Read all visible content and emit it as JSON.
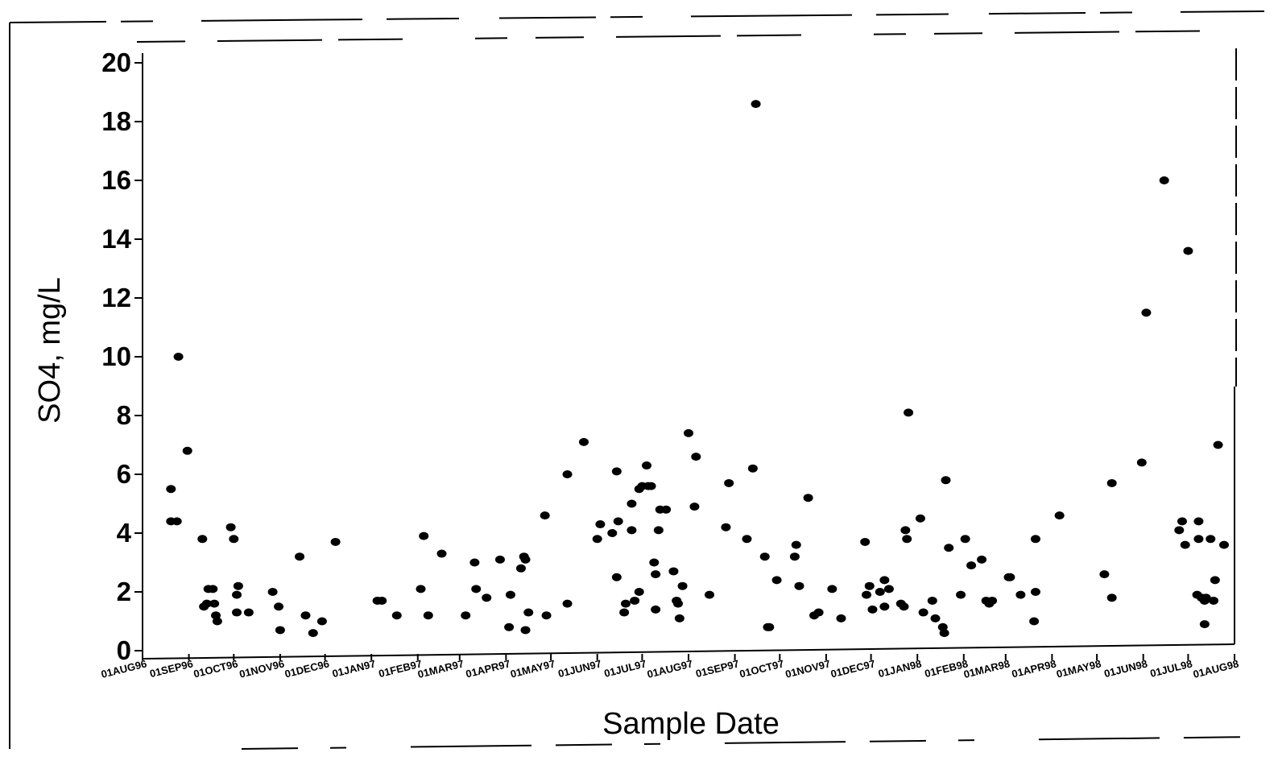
{
  "chart_data": {
    "type": "scatter",
    "title": "",
    "xlabel": "Sample Date",
    "ylabel": "SO4, mg/L",
    "ylim": [
      0,
      20
    ],
    "yticks": [
      "0",
      "2",
      "4",
      "6",
      "8",
      "10",
      "12",
      "14",
      "16",
      "18",
      "20"
    ],
    "xlim": [
      "1996-08-01",
      "1998-08-01"
    ],
    "xticks": [
      {
        "date": "1996-08-01",
        "label": "01AUG96"
      },
      {
        "date": "1996-09-01",
        "label": "01SEP96"
      },
      {
        "date": "1996-10-01",
        "label": "01OCT96"
      },
      {
        "date": "1996-11-01",
        "label": "01NOV96"
      },
      {
        "date": "1996-12-01",
        "label": "01DEC96"
      },
      {
        "date": "1997-01-01",
        "label": "01JAN97"
      },
      {
        "date": "1997-02-01",
        "label": "01FEB97"
      },
      {
        "date": "1997-03-01",
        "label": "01MAR97"
      },
      {
        "date": "1997-04-01",
        "label": "01APR97"
      },
      {
        "date": "1997-05-01",
        "label": "01MAY97"
      },
      {
        "date": "1997-06-01",
        "label": "01JUN97"
      },
      {
        "date": "1997-07-01",
        "label": "01JUL97"
      },
      {
        "date": "1997-08-01",
        "label": "01AUG97"
      },
      {
        "date": "1997-09-01",
        "label": "01SEP97"
      },
      {
        "date": "1997-10-01",
        "label": "01OCT97"
      },
      {
        "date": "1997-11-01",
        "label": "01NOV97"
      },
      {
        "date": "1997-12-01",
        "label": "01DEC97"
      },
      {
        "date": "1998-01-01",
        "label": "01JAN98"
      },
      {
        "date": "1998-02-01",
        "label": "01FEB98"
      },
      {
        "date": "1998-03-01",
        "label": "01MAR98"
      },
      {
        "date": "1998-04-01",
        "label": "01APR98"
      },
      {
        "date": "1998-05-01",
        "label": "01MAY98"
      },
      {
        "date": "1998-06-01",
        "label": "01JUN98"
      },
      {
        "date": "1998-07-01",
        "label": "01JUL98"
      },
      {
        "date": "1998-08-01",
        "label": "01AUG98"
      }
    ],
    "grid": false,
    "marker_color": "#000000",
    "series": [
      {
        "points": [
          [
            "1996-08-20",
            5.5
          ],
          [
            "1996-08-20",
            4.4
          ],
          [
            "1996-08-24",
            4.4
          ],
          [
            "1996-08-25",
            10.0
          ],
          [
            "1996-08-31",
            6.8
          ],
          [
            "1996-09-10",
            3.8
          ],
          [
            "1996-09-11",
            1.5
          ],
          [
            "1996-09-13",
            1.6
          ],
          [
            "1996-09-14",
            2.1
          ],
          [
            "1996-09-17",
            2.1
          ],
          [
            "1996-09-18",
            1.6
          ],
          [
            "1996-09-19",
            1.2
          ],
          [
            "1996-09-20",
            1.0
          ],
          [
            "1996-09-29",
            4.2
          ],
          [
            "1996-10-01",
            3.8
          ],
          [
            "1996-10-03",
            1.3
          ],
          [
            "1996-10-04",
            2.2
          ],
          [
            "1996-10-03",
            1.9
          ],
          [
            "1996-10-11",
            1.3
          ],
          [
            "1996-10-27",
            2.0
          ],
          [
            "1996-10-31",
            1.5
          ],
          [
            "1996-11-01",
            0.7
          ],
          [
            "1996-11-14",
            3.2
          ],
          [
            "1996-11-18",
            1.2
          ],
          [
            "1996-11-23",
            0.6
          ],
          [
            "1996-11-29",
            1.0
          ],
          [
            "1996-12-08",
            3.7
          ],
          [
            "1997-01-05",
            1.7
          ],
          [
            "1997-01-08",
            1.7
          ],
          [
            "1997-01-18",
            1.2
          ],
          [
            "1997-02-03",
            2.1
          ],
          [
            "1997-02-05",
            3.9
          ],
          [
            "1997-02-08",
            1.2
          ],
          [
            "1997-02-17",
            3.3
          ],
          [
            "1997-03-05",
            1.2
          ],
          [
            "1997-03-11",
            3.0
          ],
          [
            "1997-03-12",
            2.1
          ],
          [
            "1997-03-19",
            1.8
          ],
          [
            "1997-03-28",
            3.1
          ],
          [
            "1997-04-03",
            0.8
          ],
          [
            "1997-04-04",
            1.9
          ],
          [
            "1997-04-11",
            2.8
          ],
          [
            "1997-04-13",
            3.2
          ],
          [
            "1997-04-14",
            3.1
          ],
          [
            "1997-04-14",
            0.7
          ],
          [
            "1997-04-16",
            1.3
          ],
          [
            "1997-04-27",
            4.6
          ],
          [
            "1997-04-28",
            1.2
          ],
          [
            "1997-05-12",
            1.6
          ],
          [
            "1997-05-12",
            6.0
          ],
          [
            "1997-05-23",
            7.1
          ],
          [
            "1997-06-01",
            3.8
          ],
          [
            "1997-06-03",
            4.3
          ],
          [
            "1997-06-11",
            4.0
          ],
          [
            "1997-06-14",
            2.5
          ],
          [
            "1997-06-14",
            6.1
          ],
          [
            "1997-06-15",
            4.4
          ],
          [
            "1997-06-19",
            1.3
          ],
          [
            "1997-06-20",
            1.6
          ],
          [
            "1997-06-24",
            4.1
          ],
          [
            "1997-06-24",
            5.0
          ],
          [
            "1997-06-26",
            1.7
          ],
          [
            "1997-06-29",
            2.0
          ],
          [
            "1997-06-29",
            5.5
          ],
          [
            "1997-07-01",
            5.6
          ],
          [
            "1997-07-04",
            6.3
          ],
          [
            "1997-07-05",
            5.6
          ],
          [
            "1997-07-07",
            5.6
          ],
          [
            "1997-07-09",
            3.0
          ],
          [
            "1997-07-10",
            2.6
          ],
          [
            "1997-07-10",
            1.4
          ],
          [
            "1997-07-12",
            4.1
          ],
          [
            "1997-07-13",
            4.8
          ],
          [
            "1997-07-17",
            4.8
          ],
          [
            "1997-07-22",
            2.7
          ],
          [
            "1997-07-24",
            1.7
          ],
          [
            "1997-07-25",
            1.6
          ],
          [
            "1997-07-26",
            1.1
          ],
          [
            "1997-07-28",
            2.2
          ],
          [
            "1997-08-01",
            7.4
          ],
          [
            "1997-08-05",
            4.9
          ],
          [
            "1997-08-06",
            6.6
          ],
          [
            "1997-08-15",
            1.9
          ],
          [
            "1997-08-26",
            4.2
          ],
          [
            "1997-08-28",
            5.7
          ],
          [
            "1997-09-09",
            3.8
          ],
          [
            "1997-09-13",
            6.2
          ],
          [
            "1997-09-15",
            18.6
          ],
          [
            "1997-09-21",
            3.2
          ],
          [
            "1997-09-23",
            0.8
          ],
          [
            "1997-09-24",
            0.8
          ],
          [
            "1997-09-29",
            2.4
          ],
          [
            "1997-10-11",
            3.2
          ],
          [
            "1997-10-12",
            3.6
          ],
          [
            "1997-10-14",
            2.2
          ],
          [
            "1997-10-20",
            5.2
          ],
          [
            "1997-10-24",
            1.2
          ],
          [
            "1997-10-27",
            1.3
          ],
          [
            "1997-11-05",
            2.1
          ],
          [
            "1997-11-11",
            1.1
          ],
          [
            "1997-11-27",
            3.7
          ],
          [
            "1997-11-28",
            1.9
          ],
          [
            "1997-11-30",
            2.2
          ],
          [
            "1997-12-02",
            1.4
          ],
          [
            "1997-12-07",
            2.0
          ],
          [
            "1997-12-10",
            2.4
          ],
          [
            "1997-12-10",
            1.5
          ],
          [
            "1997-12-13",
            2.1
          ],
          [
            "1997-12-21",
            1.6
          ],
          [
            "1997-12-23",
            1.5
          ],
          [
            "1997-12-24",
            4.1
          ],
          [
            "1997-12-25",
            3.8
          ],
          [
            "1997-12-26",
            8.1
          ],
          [
            "1998-01-03",
            4.5
          ],
          [
            "1998-01-05",
            1.3
          ],
          [
            "1998-01-11",
            1.7
          ],
          [
            "1998-01-13",
            1.1
          ],
          [
            "1998-01-18",
            0.8
          ],
          [
            "1998-01-19",
            0.6
          ],
          [
            "1998-01-20",
            5.8
          ],
          [
            "1998-01-22",
            3.5
          ],
          [
            "1998-01-30",
            1.9
          ],
          [
            "1998-02-02",
            3.8
          ],
          [
            "1998-02-06",
            2.9
          ],
          [
            "1998-02-13",
            3.1
          ],
          [
            "1998-02-16",
            1.7
          ],
          [
            "1998-02-18",
            1.6
          ],
          [
            "1998-02-20",
            1.7
          ],
          [
            "1998-03-03",
            2.5
          ],
          [
            "1998-03-04",
            2.5
          ],
          [
            "1998-03-11",
            1.9
          ],
          [
            "1998-03-20",
            1.0
          ],
          [
            "1998-03-21",
            2.0
          ],
          [
            "1998-03-21",
            3.8
          ],
          [
            "1998-04-06",
            4.6
          ],
          [
            "1998-05-06",
            2.6
          ],
          [
            "1998-05-11",
            1.8
          ],
          [
            "1998-05-11",
            5.7
          ],
          [
            "1998-05-31",
            6.4
          ],
          [
            "1998-06-03",
            11.5
          ],
          [
            "1998-06-15",
            16.0
          ],
          [
            "1998-06-25",
            4.1
          ],
          [
            "1998-06-27",
            4.4
          ],
          [
            "1998-06-29",
            3.6
          ],
          [
            "1998-07-01",
            13.6
          ],
          [
            "1998-07-07",
            1.9
          ],
          [
            "1998-07-08",
            4.4
          ],
          [
            "1998-07-08",
            3.8
          ],
          [
            "1998-07-10",
            1.8
          ],
          [
            "1998-07-12",
            1.7
          ],
          [
            "1998-07-12",
            0.9
          ],
          [
            "1998-07-13",
            1.8
          ],
          [
            "1998-07-16",
            3.8
          ],
          [
            "1998-07-18",
            1.7
          ],
          [
            "1998-07-19",
            2.4
          ],
          [
            "1998-07-21",
            7.0
          ],
          [
            "1998-07-25",
            3.6
          ]
        ]
      }
    ]
  }
}
